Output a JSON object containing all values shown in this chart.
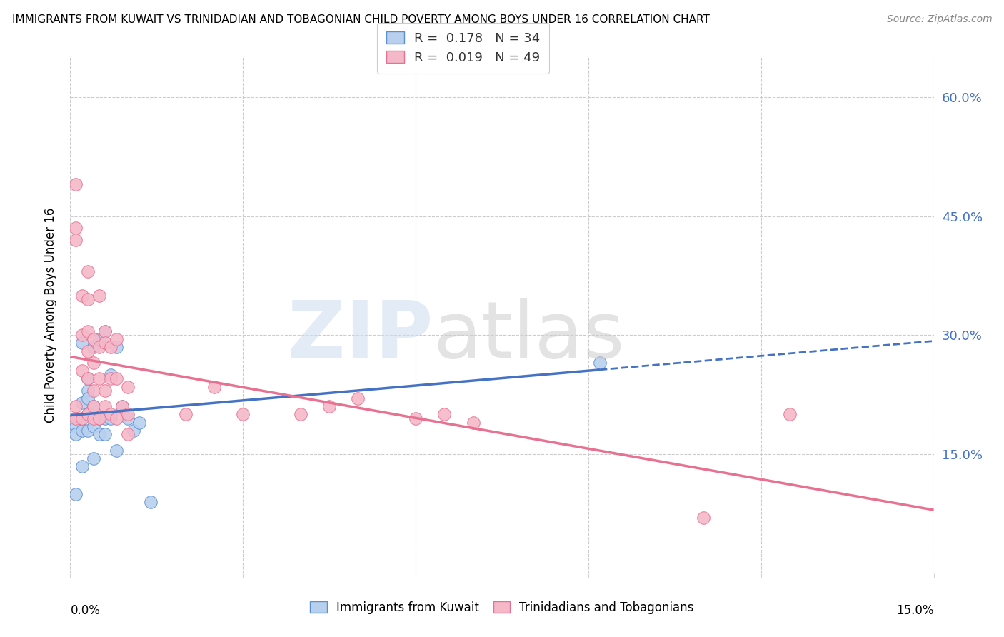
{
  "title": "IMMIGRANTS FROM KUWAIT VS TRINIDADIAN AND TOBAGONIAN CHILD POVERTY AMONG BOYS UNDER 16 CORRELATION CHART",
  "source": "Source: ZipAtlas.com",
  "ylabel": "Child Poverty Among Boys Under 16",
  "xlim": [
    0.0,
    0.15
  ],
  "ylim": [
    0.0,
    0.65
  ],
  "blue_R": "0.178",
  "blue_N": "34",
  "pink_R": "0.019",
  "pink_N": "49",
  "blue_fill": "#b8d0ee",
  "pink_fill": "#f5b8c8",
  "blue_edge": "#5b8fd4",
  "pink_edge": "#e87090",
  "blue_line": "#4472c4",
  "pink_line": "#e87090",
  "ytick_vals": [
    0.15,
    0.3,
    0.45,
    0.6
  ],
  "ytick_labels": [
    "15.0%",
    "30.0%",
    "45.0%",
    "60.0%"
  ],
  "xtick_vals": [
    0.0,
    0.03,
    0.06,
    0.09,
    0.12,
    0.15
  ],
  "blue_scatter_x": [
    0.001,
    0.001,
    0.001,
    0.001,
    0.002,
    0.002,
    0.002,
    0.002,
    0.002,
    0.003,
    0.003,
    0.003,
    0.003,
    0.003,
    0.004,
    0.004,
    0.004,
    0.004,
    0.005,
    0.005,
    0.005,
    0.006,
    0.006,
    0.006,
    0.007,
    0.007,
    0.008,
    0.008,
    0.009,
    0.01,
    0.011,
    0.012,
    0.014,
    0.092
  ],
  "blue_scatter_y": [
    0.195,
    0.185,
    0.175,
    0.1,
    0.29,
    0.215,
    0.195,
    0.18,
    0.135,
    0.245,
    0.23,
    0.22,
    0.2,
    0.18,
    0.285,
    0.21,
    0.185,
    0.145,
    0.295,
    0.195,
    0.175,
    0.305,
    0.195,
    0.175,
    0.25,
    0.195,
    0.285,
    0.155,
    0.21,
    0.195,
    0.18,
    0.19,
    0.09,
    0.265
  ],
  "pink_scatter_x": [
    0.001,
    0.001,
    0.001,
    0.001,
    0.001,
    0.002,
    0.002,
    0.002,
    0.002,
    0.003,
    0.003,
    0.003,
    0.003,
    0.003,
    0.003,
    0.004,
    0.004,
    0.004,
    0.004,
    0.004,
    0.005,
    0.005,
    0.005,
    0.005,
    0.006,
    0.006,
    0.006,
    0.006,
    0.007,
    0.007,
    0.007,
    0.008,
    0.008,
    0.008,
    0.009,
    0.01,
    0.01,
    0.01,
    0.02,
    0.025,
    0.03,
    0.04,
    0.045,
    0.05,
    0.06,
    0.065,
    0.07,
    0.11,
    0.125
  ],
  "pink_scatter_y": [
    0.49,
    0.435,
    0.42,
    0.21,
    0.195,
    0.35,
    0.3,
    0.255,
    0.195,
    0.38,
    0.345,
    0.305,
    0.28,
    0.245,
    0.2,
    0.295,
    0.265,
    0.23,
    0.21,
    0.195,
    0.35,
    0.285,
    0.245,
    0.195,
    0.305,
    0.29,
    0.23,
    0.21,
    0.285,
    0.245,
    0.2,
    0.295,
    0.245,
    0.195,
    0.21,
    0.235,
    0.2,
    0.175,
    0.2,
    0.235,
    0.2,
    0.2,
    0.21,
    0.22,
    0.195,
    0.2,
    0.19,
    0.07,
    0.2
  ]
}
